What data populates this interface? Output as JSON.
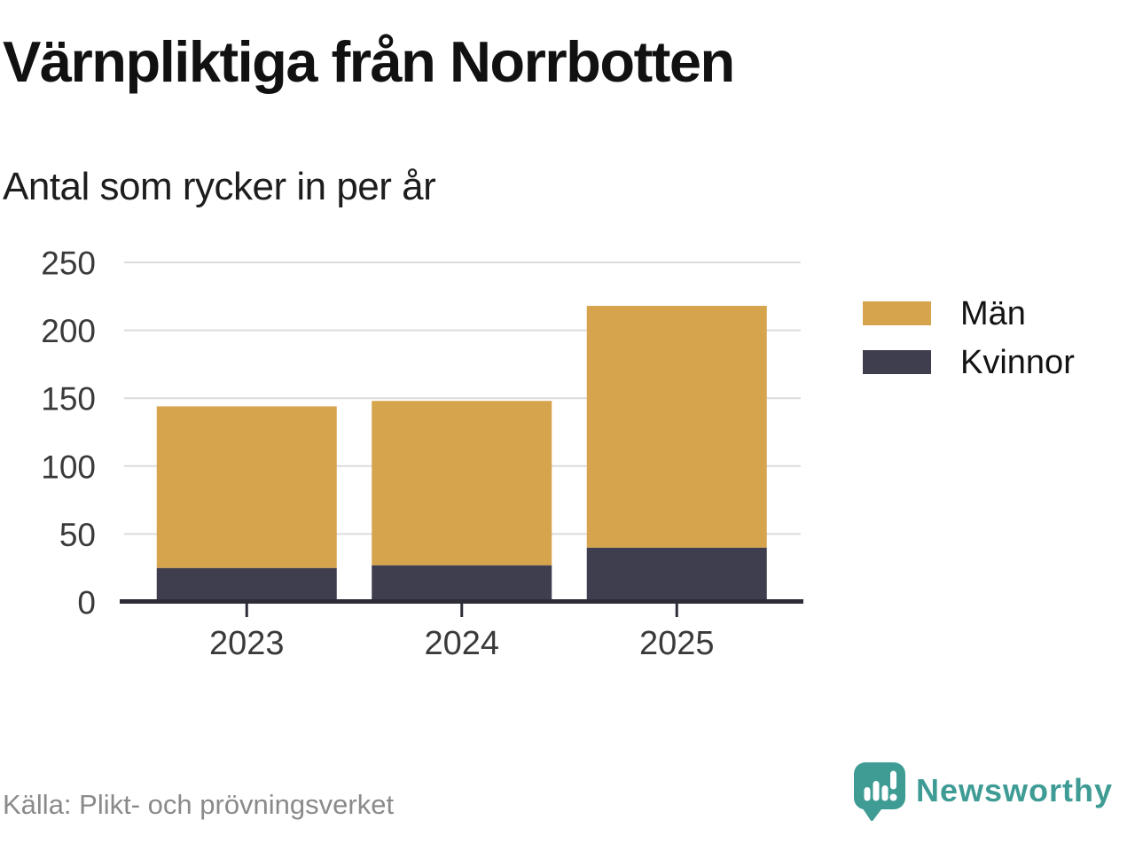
{
  "header": {
    "title": "Värnpliktiga från Norrbotten",
    "subtitle": "Antal som rycker in per år"
  },
  "chart_data": {
    "type": "bar",
    "stacked": true,
    "title": "Värnpliktiga från Norrbotten",
    "subtitle": "Antal som rycker in per år",
    "categories": [
      "2023",
      "2024",
      "2025"
    ],
    "series": [
      {
        "name": "Män",
        "color": "#D7A44E",
        "values": [
          119,
          121,
          178
        ]
      },
      {
        "name": "Kvinnor",
        "color": "#3E3E4E",
        "values": [
          25,
          27,
          40
        ]
      }
    ],
    "stack_bottom_to_top": [
      "Kvinnor",
      "Män"
    ],
    "totals": [
      144,
      148,
      218
    ],
    "xlabel": "",
    "ylabel": "",
    "ylim": [
      0,
      250
    ],
    "yticks": [
      0,
      50,
      100,
      150,
      200,
      250
    ],
    "grid": "horizontal",
    "legend_position": "right"
  },
  "legend": {
    "items": [
      {
        "label": "Män",
        "color": "#D7A44E"
      },
      {
        "label": "Kvinnor",
        "color": "#3E3E4E"
      }
    ]
  },
  "footer": {
    "source": "Källa: Plikt- och prövningsverket",
    "brand": "Newsworthy",
    "brand_icon": "newsworthy-speech-bubble-chart-icon",
    "brand_color": "#3E9C95"
  },
  "colors": {
    "background": "#FFFFFF",
    "men_bar": "#D7A44E",
    "women_bar": "#3E3E4E",
    "gridline": "#DCDCDC",
    "axis": "#2D2D38",
    "tick_labels": "#3A3A3A",
    "title_text": "#111111",
    "source_text": "#8A8A8A",
    "brand_teal": "#3E9C95"
  }
}
